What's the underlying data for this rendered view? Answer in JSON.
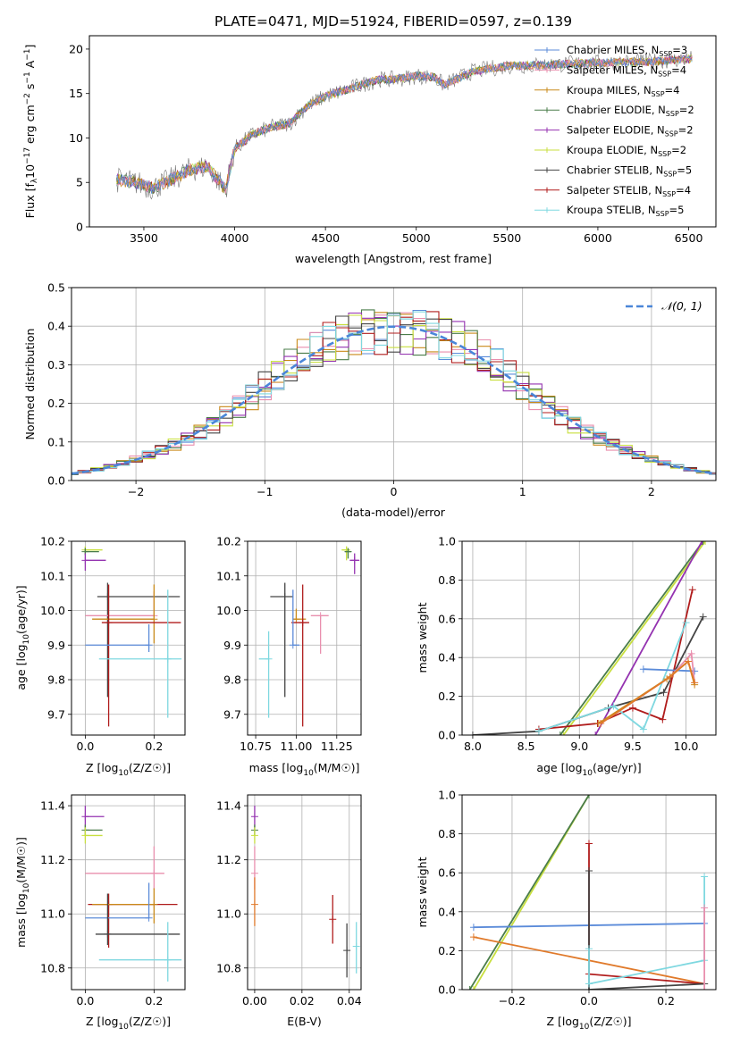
{
  "figure_title": "PLATE=0471, MJD=51924, FIBERID=0597, z=0.139",
  "colors": {
    "Chabrier MILES": "#5b8bd9",
    "Salpeter MILES": "#e98fae",
    "Kroupa MILES": "#c98a1a",
    "Chabrier ELODIE": "#4a7d4a",
    "Salpeter ELODIE": "#9432b0",
    "Kroupa ELODIE": "#c8df3f",
    "Chabrier STELIB": "#444444",
    "Salpeter STELIB": "#b01c1c",
    "Kroupa STELIB": "#7fd8e0",
    "orange": "#e07a2b",
    "gauss": "#4a86d8"
  },
  "chart_data": [
    {
      "id": "spectrum",
      "type": "line",
      "title": "PLATE=0471, MJD=51924, FIBERID=0597, z=0.139",
      "xlabel": "wavelength [Angstrom, rest frame]",
      "ylabel": "Flux [f_λ 10^-17 erg cm^-2 s^-1 A^-1]",
      "xlim": [
        3200,
        6650
      ],
      "ylim": [
        0,
        21.5
      ],
      "xticks": [
        3500,
        4000,
        4500,
        5000,
        5500,
        6000,
        6500
      ],
      "yticks": [
        0,
        5,
        10,
        15,
        20
      ],
      "legend_position": "right",
      "legend": [
        "Chabrier MILES, N_SSP=3",
        "Salpeter MILES, N_SSP=4",
        "Kroupa MILES, N_SSP=4",
        "Chabrier ELODIE, N_SSP=2",
        "Salpeter ELODIE, N_SSP=2",
        "Kroupa ELODIE, N_SSP=2",
        "Chabrier STELIB, N_SSP=5",
        "Salpeter STELIB, N_SSP=4",
        "Kroupa STELIB, N_SSP=5"
      ],
      "continuum": [
        [
          3350,
          5.3
        ],
        [
          3450,
          5.0
        ],
        [
          3550,
          4.4
        ],
        [
          3650,
          5.3
        ],
        [
          3750,
          6.4
        ],
        [
          3850,
          6.8
        ],
        [
          3950,
          4.2
        ],
        [
          4000,
          8.8
        ],
        [
          4100,
          10.4
        ],
        [
          4200,
          11.2
        ],
        [
          4300,
          11.6
        ],
        [
          4400,
          13.6
        ],
        [
          4500,
          14.7
        ],
        [
          4600,
          15.3
        ],
        [
          4700,
          16.0
        ],
        [
          4800,
          16.6
        ],
        [
          4900,
          16.6
        ],
        [
          5000,
          17.0
        ],
        [
          5100,
          16.8
        ],
        [
          5150,
          16.0
        ],
        [
          5200,
          16.4
        ],
        [
          5300,
          17.4
        ],
        [
          5400,
          17.8
        ],
        [
          5500,
          18.1
        ],
        [
          5700,
          18.2
        ],
        [
          5900,
          18.4
        ],
        [
          6100,
          18.5
        ],
        [
          6300,
          18.6
        ],
        [
          6500,
          18.9
        ]
      ]
    },
    {
      "id": "residuals",
      "type": "bar",
      "xlabel": "(data-model)/error",
      "ylabel": "Normed distribution",
      "xlim": [
        -2.5,
        2.5
      ],
      "ylim": [
        0,
        0.5
      ],
      "xticks": [
        -2,
        -1,
        0,
        1,
        2
      ],
      "xticklabels": [
        "−2",
        "−1",
        "0",
        "1",
        "2"
      ],
      "yticks": [
        0,
        0.1,
        0.2,
        0.3,
        0.4,
        0.5
      ],
      "yticklabels": [
        "0.0",
        "0.1",
        "0.2",
        "0.3",
        "0.4",
        "0.5"
      ],
      "legend_position": "top-right",
      "gauss_label": "𝒩(0, 1)",
      "bin_width": 0.1,
      "series": [
        {
          "key": "Chabrier MILES",
          "phase": 0.3
        },
        {
          "key": "Salpeter MILES",
          "phase": 1.1
        },
        {
          "key": "Kroupa MILES",
          "phase": 2.0
        },
        {
          "key": "Chabrier ELODIE",
          "phase": 2.7
        },
        {
          "key": "Salpeter ELODIE",
          "phase": 3.5
        },
        {
          "key": "Kroupa ELODIE",
          "phase": 4.2
        },
        {
          "key": "Chabrier STELIB",
          "phase": 5.0
        },
        {
          "key": "Salpeter STELIB",
          "phase": 5.7
        },
        {
          "key": "Kroupa STELIB",
          "phase": 6.4
        }
      ]
    },
    {
      "id": "age_vs_Z",
      "type": "scatter",
      "xlabel": "Z [log10(Z/Z☉)]",
      "ylabel": "age [log10(age/yr)]",
      "xlim": [
        -0.04,
        0.29
      ],
      "ylim": [
        9.64,
        10.2
      ],
      "xticks": [
        0.0,
        0.2
      ],
      "xticklabels": [
        "0.0",
        "0.2"
      ],
      "yticks": [
        9.7,
        9.8,
        9.9,
        10.0,
        10.1,
        10.2
      ],
      "yticklabels": [
        "9.7",
        "9.8",
        "9.9",
        "10.0",
        "10.1",
        "10.2"
      ],
      "points": [
        {
          "key": "Kroupa ELODIE",
          "x": 0.0,
          "y": 10.175,
          "xerr": [
            0.0,
            0.05
          ],
          "yerr": [
            0.01,
            0.01
          ]
        },
        {
          "key": "Chabrier ELODIE",
          "x": 0.0,
          "y": 10.17,
          "xerr": [
            0.0,
            0.04
          ],
          "yerr": [
            0.01,
            0.01
          ]
        },
        {
          "key": "Salpeter ELODIE",
          "x": 0.0,
          "y": 10.145,
          "xerr": [
            0.0,
            0.06
          ],
          "yerr": [
            0.03,
            0.02
          ]
        },
        {
          "key": "Chabrier STELIB",
          "x": 0.065,
          "y": 10.04,
          "xerr": [
            0.03,
            0.21
          ],
          "yerr": [
            0.29,
            0.04
          ]
        },
        {
          "key": "Salpeter MILES",
          "x": 0.2,
          "y": 9.985,
          "xerr": [
            0.2,
            0.0
          ],
          "yerr": [
            0.0,
            0.07
          ]
        },
        {
          "key": "Kroupa MILES",
          "x": 0.2,
          "y": 9.975,
          "xerr": [
            0.18,
            0.0
          ],
          "yerr": [
            0.07,
            0.1
          ]
        },
        {
          "key": "Salpeter STELIB",
          "x": 0.068,
          "y": 9.965,
          "xerr": [
            0.02,
            0.21
          ],
          "yerr": [
            0.3,
            0.11
          ]
        },
        {
          "key": "Chabrier MILES",
          "x": 0.185,
          "y": 9.9,
          "xerr": [
            0.185,
            0.0
          ],
          "yerr": [
            0.02,
            0.06
          ]
        },
        {
          "key": "Kroupa STELIB",
          "x": 0.24,
          "y": 9.86,
          "xerr": [
            0.2,
            0.04
          ],
          "yerr": [
            0.17,
            0.2
          ]
        }
      ]
    },
    {
      "id": "age_vs_mass",
      "type": "scatter",
      "xlabel": "mass [log10(M/M☉)]",
      "xlim": [
        10.7,
        11.4
      ],
      "ylim": [
        9.64,
        10.2
      ],
      "xticks": [
        10.75,
        11.0,
        11.25
      ],
      "xticklabels": [
        "10.75",
        "11.00",
        "11.25"
      ],
      "yticks": [
        9.7,
        9.8,
        9.9,
        10.0,
        10.1,
        10.2
      ],
      "yticklabels": [
        "9.7",
        "9.8",
        "9.9",
        "10.0",
        "10.1",
        "10.2"
      ],
      "points": [
        {
          "key": "Kroupa ELODIE",
          "x": 11.31,
          "y": 10.175,
          "xerr": [
            0.03,
            0.02
          ],
          "yerr": [
            0.03,
            0.01
          ]
        },
        {
          "key": "Chabrier ELODIE",
          "x": 11.32,
          "y": 10.17,
          "xerr": [
            0.02,
            0.02
          ],
          "yerr": [
            0.02,
            0.01
          ]
        },
        {
          "key": "Salpeter ELODIE",
          "x": 11.36,
          "y": 10.145,
          "xerr": [
            0.03,
            0.03
          ],
          "yerr": [
            0.04,
            0.02
          ]
        },
        {
          "key": "Chabrier STELIB",
          "x": 10.93,
          "y": 10.04,
          "xerr": [
            0.09,
            0.05
          ],
          "yerr": [
            0.29,
            0.04
          ]
        },
        {
          "key": "Salpeter MILES",
          "x": 11.15,
          "y": 9.985,
          "xerr": [
            0.06,
            0.05
          ],
          "yerr": [
            0.11,
            0.0
          ]
        },
        {
          "key": "Kroupa MILES",
          "x": 11.0,
          "y": 9.975,
          "xerr": [
            0.02,
            0.06
          ],
          "yerr": [
            0.0,
            0.03
          ]
        },
        {
          "key": "Salpeter STELIB",
          "x": 11.04,
          "y": 9.965,
          "xerr": [
            0.07,
            0.04
          ],
          "yerr": [
            0.3,
            0.11
          ]
        },
        {
          "key": "Chabrier MILES",
          "x": 10.98,
          "y": 9.9,
          "xerr": [
            0.0,
            0.04
          ],
          "yerr": [
            0.0,
            0.16
          ]
        },
        {
          "key": "Kroupa STELIB",
          "x": 10.83,
          "y": 9.86,
          "xerr": [
            0.06,
            0.0
          ],
          "yerr": [
            0.17,
            0.08
          ]
        }
      ]
    },
    {
      "id": "weight_vs_age",
      "type": "line",
      "xlabel": "age [log10(age/yr)]",
      "ylabel": "mass weight",
      "xlim": [
        7.9,
        10.28
      ],
      "ylim": [
        0,
        1.0
      ],
      "xticks": [
        8.0,
        8.5,
        9.0,
        9.5,
        10.0
      ],
      "xticklabels": [
        "8.0",
        "8.5",
        "9.0",
        "9.5",
        "10.0"
      ],
      "yticks": [
        0,
        0.2,
        0.4,
        0.6,
        0.8,
        1.0
      ],
      "yticklabels": [
        "0.0",
        "0.2",
        "0.4",
        "0.6",
        "0.8",
        "1.0"
      ],
      "series": [
        {
          "key": "Kroupa ELODIE",
          "x": [
            8.85,
            10.18
          ],
          "y": [
            0.0,
            1.0
          ]
        },
        {
          "key": "Chabrier ELODIE",
          "x": [
            8.82,
            10.16
          ],
          "y": [
            0.0,
            1.0
          ]
        },
        {
          "key": "Salpeter ELODIE",
          "x": [
            9.15,
            10.15
          ],
          "y": [
            0.0,
            1.0
          ]
        },
        {
          "key": "Chabrier STELIB",
          "x": [
            8.0,
            8.62,
            9.27,
            9.79,
            10.16
          ],
          "y": [
            0.0,
            0.02,
            0.14,
            0.22,
            0.61
          ]
        },
        {
          "key": "Salpeter STELIB",
          "x": [
            8.62,
            9.17,
            9.5,
            9.78,
            10.06
          ],
          "y": [
            0.03,
            0.06,
            0.14,
            0.08,
            0.75
          ]
        },
        {
          "key": "Kroupa STELIB",
          "x": [
            8.62,
            9.32,
            9.6,
            10.0
          ],
          "y": [
            0.02,
            0.15,
            0.03,
            0.58
          ]
        },
        {
          "key": "Chabrier MILES",
          "x": [
            9.6,
            10.08
          ],
          "y": [
            0.34,
            0.33
          ]
        },
        {
          "key": "Salpeter MILES",
          "x": [
            9.2,
            9.85,
            10.05,
            10.08
          ],
          "y": [
            0.06,
            0.3,
            0.42,
            0.27
          ]
        },
        {
          "key": "Kroupa MILES",
          "x": [
            9.18,
            9.82,
            10.02,
            10.08
          ],
          "y": [
            0.06,
            0.29,
            0.38,
            0.26
          ]
        },
        {
          "key": "orange",
          "x": [
            9.2,
            9.85,
            10.02,
            10.08
          ],
          "y": [
            0.06,
            0.3,
            0.38,
            0.27
          ]
        }
      ]
    },
    {
      "id": "mass_vs_Z",
      "type": "scatter",
      "xlabel": "Z [log10(Z/Z☉)]",
      "ylabel": "mass [log10(M/M☉)]",
      "xlim": [
        -0.04,
        0.29
      ],
      "ylim": [
        10.72,
        11.44
      ],
      "xticks": [
        0.0,
        0.2
      ],
      "xticklabels": [
        "0.0",
        "0.2"
      ],
      "yticks": [
        10.8,
        11.0,
        11.2,
        11.4
      ],
      "yticklabels": [
        "10.8",
        "11.0",
        "11.2",
        "11.4"
      ],
      "points": [
        {
          "key": "Salpeter ELODIE",
          "x": 0.0,
          "y": 11.36,
          "xerr": [
            0.0,
            0.055
          ],
          "yerr": [
            0.04,
            0.04
          ]
        },
        {
          "key": "Chabrier ELODIE",
          "x": 0.0,
          "y": 11.31,
          "xerr": [
            0.0,
            0.05
          ],
          "yerr": [
            0.02,
            0.02
          ]
        },
        {
          "key": "Kroupa ELODIE",
          "x": 0.0,
          "y": 11.29,
          "xerr": [
            0.0,
            0.05
          ],
          "yerr": [
            0.03,
            0.03
          ]
        },
        {
          "key": "Salpeter MILES",
          "x": 0.2,
          "y": 11.15,
          "xerr": [
            0.2,
            0.03
          ],
          "yerr": [
            0.06,
            0.1
          ]
        },
        {
          "key": "Salpeter STELIB",
          "x": 0.068,
          "y": 11.035,
          "xerr": [
            0.06,
            0.2
          ],
          "yerr": [
            0.16,
            0.04
          ]
        },
        {
          "key": "Kroupa MILES",
          "x": 0.2,
          "y": 11.035,
          "xerr": [
            0.18,
            0.0
          ],
          "yerr": [
            0.07,
            0.06
          ]
        },
        {
          "key": "Chabrier MILES",
          "x": 0.185,
          "y": 10.985,
          "xerr": [
            0.185,
            0.0
          ],
          "yerr": [
            0.0,
            0.13
          ]
        },
        {
          "key": "Chabrier STELIB",
          "x": 0.065,
          "y": 10.925,
          "xerr": [
            0.035,
            0.21
          ],
          "yerr": [
            0.04,
            0.15
          ]
        },
        {
          "key": "Kroupa STELIB",
          "x": 0.24,
          "y": 10.83,
          "xerr": [
            0.2,
            0.04
          ],
          "yerr": [
            0.08,
            0.14
          ]
        }
      ]
    },
    {
      "id": "mass_vs_EBV",
      "type": "scatter",
      "xlabel": "E(B-V)",
      "xlim": [
        -0.003,
        0.045
      ],
      "ylim": [
        10.72,
        11.44
      ],
      "xticks": [
        0.0,
        0.02,
        0.04
      ],
      "xticklabels": [
        "0.00",
        "0.02",
        "0.04"
      ],
      "yticks": [
        10.8,
        11.0,
        11.2,
        11.4
      ],
      "yticklabels": [
        "10.8",
        "11.0",
        "11.2",
        "11.4"
      ],
      "points": [
        {
          "key": "Salpeter ELODIE",
          "x": 0.0,
          "y": 11.36,
          "yerr": [
            0.04,
            0.04
          ]
        },
        {
          "key": "Chabrier ELODIE",
          "x": 0.0,
          "y": 11.31,
          "yerr": [
            0.02,
            0.02
          ]
        },
        {
          "key": "Kroupa ELODIE",
          "x": 0.0,
          "y": 11.29,
          "yerr": [
            0.03,
            0.03
          ]
        },
        {
          "key": "Salpeter MILES",
          "x": 0.0,
          "y": 11.15,
          "yerr": [
            0.06,
            0.1
          ]
        },
        {
          "key": "orange",
          "x": 0.0,
          "y": 11.035,
          "yerr": [
            0.08,
            0.1
          ]
        },
        {
          "key": "Salpeter STELIB",
          "x": 0.033,
          "y": 10.98,
          "yerr": [
            0.09,
            0.09
          ]
        },
        {
          "key": "Chabrier STELIB",
          "x": 0.039,
          "y": 10.865,
          "yerr": [
            0.1,
            0.1
          ]
        },
        {
          "key": "Kroupa STELIB",
          "x": 0.043,
          "y": 10.88,
          "yerr": [
            0.1,
            0.09
          ]
        }
      ]
    },
    {
      "id": "weight_vs_Z",
      "type": "line",
      "xlabel": "Z [log10(Z/Z☉)]",
      "ylabel": "mass weight",
      "xlim": [
        -0.33,
        0.33
      ],
      "ylim": [
        0,
        1.0
      ],
      "xticks": [
        -0.2,
        0.0,
        0.2
      ],
      "xticklabels": [
        "−0.2",
        "0.0",
        "0.2"
      ],
      "yticks": [
        0,
        0.2,
        0.4,
        0.6,
        0.8,
        1.0
      ],
      "yticklabels": [
        "0.0",
        "0.2",
        "0.4",
        "0.6",
        "0.8",
        "1.0"
      ],
      "series": [
        {
          "key": "Kroupa ELODIE",
          "x": [
            -0.3,
            0.0
          ],
          "y": [
            0.0,
            1.0
          ]
        },
        {
          "key": "Chabrier ELODIE",
          "x": [
            -0.31,
            0.0
          ],
          "y": [
            0.0,
            1.0
          ]
        },
        {
          "key": "Chabrier MILES",
          "x": [
            -0.3,
            0.3
          ],
          "y": [
            0.32,
            0.34
          ]
        },
        {
          "key": "orange",
          "x": [
            -0.3,
            0.3
          ],
          "y": [
            0.27,
            0.03
          ]
        },
        {
          "key": "Salpeter STELIB",
          "x": [
            0.0,
            0.0,
            0.3
          ],
          "y": [
            0.75,
            0.08,
            0.03
          ]
        },
        {
          "key": "Chabrier STELIB",
          "x": [
            0.0,
            0.0,
            0.3
          ],
          "y": [
            0.61,
            0.0,
            0.03
          ]
        },
        {
          "key": "Kroupa STELIB",
          "x": [
            0.0,
            0.0,
            0.3,
            0.3
          ],
          "y": [
            0.21,
            0.03,
            0.15,
            0.58
          ]
        },
        {
          "key": "Salpeter MILES",
          "x": [
            0.3,
            0.3
          ],
          "y": [
            0.0,
            0.42
          ]
        }
      ]
    }
  ]
}
